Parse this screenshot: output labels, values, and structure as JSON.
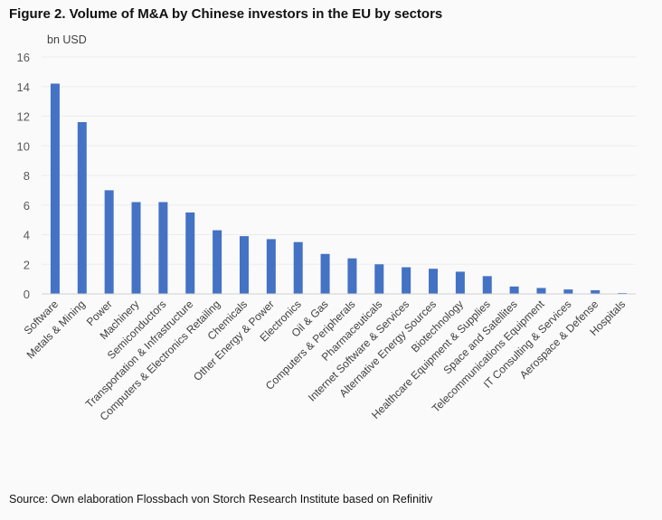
{
  "title": "Figure 2. Volume of M&A by Chinese investors in the EU by sectors",
  "source": "Source: Own elaboration Flossbach von Storch Research Institute based on Refinitiv",
  "chart_data": {
    "type": "bar",
    "ylabel": "bn USD",
    "ylim": [
      0,
      16
    ],
    "yticks": [
      0,
      2,
      4,
      6,
      8,
      10,
      12,
      14,
      16
    ],
    "grid": true,
    "bar_color": "#4472c4",
    "categories": [
      "Software",
      "Metals & Mining",
      "Power",
      "Machinery",
      "Semiconductors",
      "Transportation & Infrastructure",
      "Computers & Electronics Retailing",
      "Chemicals",
      "Other Energy & Power",
      "Electronics",
      "Oil & Gas",
      "Computers & Peripherals",
      "Pharmaceuticals",
      "Internet Software & Services",
      "Alternative Energy Sources",
      "Biotechnology",
      "Healthcare Equipment & Supplies",
      "Space and Satellites",
      "Telecommunications Equipment",
      "IT Consulting & Services",
      "Aerospace & Defense",
      "Hospitals"
    ],
    "values": [
      14.2,
      11.6,
      7.0,
      6.2,
      6.2,
      5.5,
      4.3,
      3.9,
      3.7,
      3.5,
      2.7,
      2.4,
      2.0,
      1.8,
      1.7,
      1.5,
      1.2,
      0.5,
      0.4,
      0.3,
      0.25,
      0.06
    ]
  }
}
